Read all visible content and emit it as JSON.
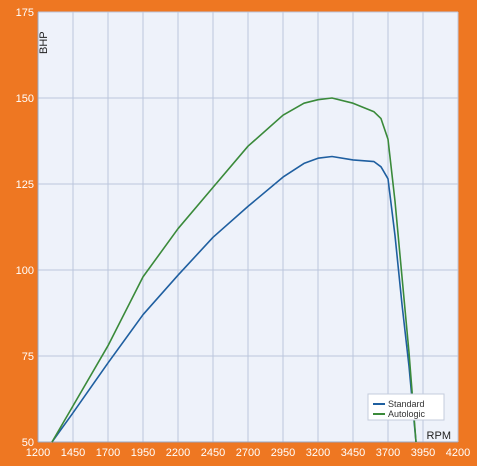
{
  "chart_data": {
    "type": "line",
    "xlabel": "RPM",
    "ylabel": "BHP",
    "xlim": [
      1200,
      4200
    ],
    "ylim": [
      50,
      175
    ],
    "x_ticks": [
      "1200",
      "1450",
      "1700",
      "1950",
      "2200",
      "2450",
      "2700",
      "2950",
      "3200",
      "3450",
      "3700",
      "3950",
      "4200"
    ],
    "y_ticks": [
      "50",
      "75",
      "100",
      "125",
      "150",
      "175"
    ],
    "grid": true,
    "legend_position": "bottom-right",
    "colors": {
      "frame": "#ee7722",
      "plot_background": "#eef2fa",
      "grid": "#bcc6dc",
      "axis_text": "#ffffff",
      "label_text": "#222222"
    },
    "series": [
      {
        "name": "Standard",
        "color": "#1f5fa0",
        "x": [
          1300,
          1450,
          1700,
          1950,
          2200,
          2450,
          2700,
          2950,
          3100,
          3200,
          3300,
          3450,
          3600,
          3650,
          3700,
          3750,
          3800,
          3850,
          3900
        ],
        "y": [
          50,
          58.5,
          73,
          87,
          98.5,
          109.5,
          118.5,
          127,
          131,
          132.5,
          133,
          132,
          131.5,
          130,
          126.5,
          110,
          90,
          72,
          50
        ]
      },
      {
        "name": "Autologic",
        "color": "#3a8a3a",
        "x": [
          1300,
          1450,
          1700,
          1950,
          2200,
          2450,
          2700,
          2950,
          3100,
          3200,
          3300,
          3450,
          3600,
          3650,
          3700,
          3750,
          3800,
          3850,
          3900
        ],
        "y": [
          50,
          60.5,
          78,
          98,
          112,
          124,
          136,
          145,
          148.5,
          149.5,
          150,
          148.5,
          146,
          144,
          138,
          120,
          98,
          76,
          50
        ]
      }
    ]
  }
}
